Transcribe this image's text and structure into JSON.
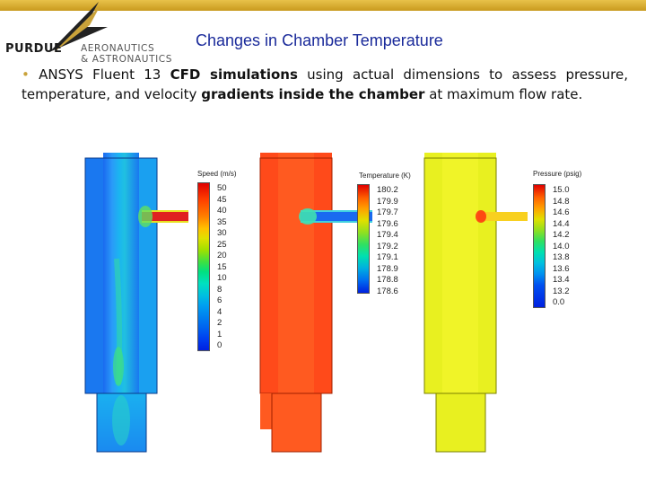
{
  "logo": {
    "org": "PURDUE",
    "dept_line1": "AERONAUTICS",
    "dept_line2": "& ASTRONAUTICS"
  },
  "slide": {
    "title": "Changes in Chamber Temperature",
    "bullet_parts": [
      {
        "text": "ANSYS Fluent 13 ",
        "bold": false
      },
      {
        "text": "CFD simulations",
        "bold": true
      },
      {
        "text": " using actual dimensions to assess pressure, temperature, and velocity ",
        "bold": false
      },
      {
        "text": "gradients inside the chamber",
        "bold": true
      },
      {
        "text": " at maximum flow rate.",
        "bold": false
      }
    ]
  },
  "simulations": [
    {
      "name": "speed",
      "legend_title": "Speed (m/s)",
      "legend_labels": [
        "50",
        "45",
        "40",
        "35",
        "30",
        "25",
        "20",
        "15",
        "10",
        "8",
        "6",
        "4",
        "2",
        "1",
        "0"
      ]
    },
    {
      "name": "temperature",
      "legend_title": "Temperature (K)",
      "legend_labels": [
        "180.2",
        "179.9",
        "179.7",
        "179.6",
        "179.4",
        "179.2",
        "179.1",
        "178.9",
        "178.8",
        "178.6"
      ]
    },
    {
      "name": "pressure",
      "legend_title": "Pressure (psig)",
      "legend_labels": [
        "15.0",
        "14.8",
        "14.6",
        "14.4",
        "14.2",
        "14.0",
        "13.8",
        "13.6",
        "13.4",
        "13.2",
        "0.0"
      ]
    }
  ],
  "colors": {
    "title": "#1a2a9a",
    "accent_gold": "#c9a23a"
  }
}
